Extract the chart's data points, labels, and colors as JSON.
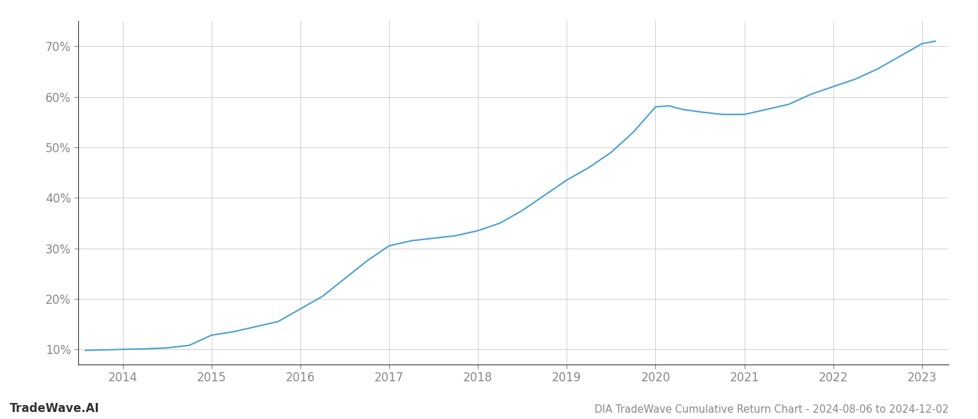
{
  "x_years": [
    2013.58,
    2014.0,
    2014.25,
    2014.5,
    2014.75,
    2015.0,
    2015.25,
    2015.5,
    2015.75,
    2016.0,
    2016.25,
    2016.5,
    2016.75,
    2017.0,
    2017.25,
    2017.5,
    2017.75,
    2018.0,
    2018.25,
    2018.5,
    2018.75,
    2019.0,
    2019.25,
    2019.5,
    2019.75,
    2020.0,
    2020.15,
    2020.3,
    2020.5,
    2020.75,
    2021.0,
    2021.25,
    2021.5,
    2021.75,
    2022.0,
    2022.25,
    2022.5,
    2022.75,
    2023.0,
    2023.15
  ],
  "y_values": [
    9.8,
    10.0,
    10.1,
    10.3,
    10.8,
    12.8,
    13.5,
    14.5,
    15.5,
    18.0,
    20.5,
    24.0,
    27.5,
    30.5,
    31.5,
    32.0,
    32.5,
    33.5,
    35.0,
    37.5,
    40.5,
    43.5,
    46.0,
    49.0,
    53.0,
    58.0,
    58.2,
    57.5,
    57.0,
    56.5,
    56.5,
    57.5,
    58.5,
    60.5,
    62.0,
    63.5,
    65.5,
    68.0,
    70.5,
    71.0
  ],
  "line_color": "#4a9fd4",
  "line_width": 1.5,
  "background_color": "#ffffff",
  "grid_color": "#d0d0d0",
  "tick_label_color": "#888888",
  "title_text": "DIA TradeWave Cumulative Return Chart - 2024-08-06 to 2024-12-02",
  "watermark_text": "TradeWave.AI",
  "xlim": [
    2013.5,
    2023.3
  ],
  "ylim": [
    7,
    75
  ],
  "xtick_positions": [
    2014,
    2015,
    2016,
    2017,
    2018,
    2019,
    2020,
    2021,
    2022,
    2023
  ],
  "ytick_positions": [
    10,
    20,
    30,
    40,
    50,
    60,
    70
  ],
  "title_fontsize": 10.5,
  "watermark_fontsize": 12,
  "tick_fontsize": 12,
  "left_spine_color": "#333333",
  "bottom_spine_color": "#333333"
}
